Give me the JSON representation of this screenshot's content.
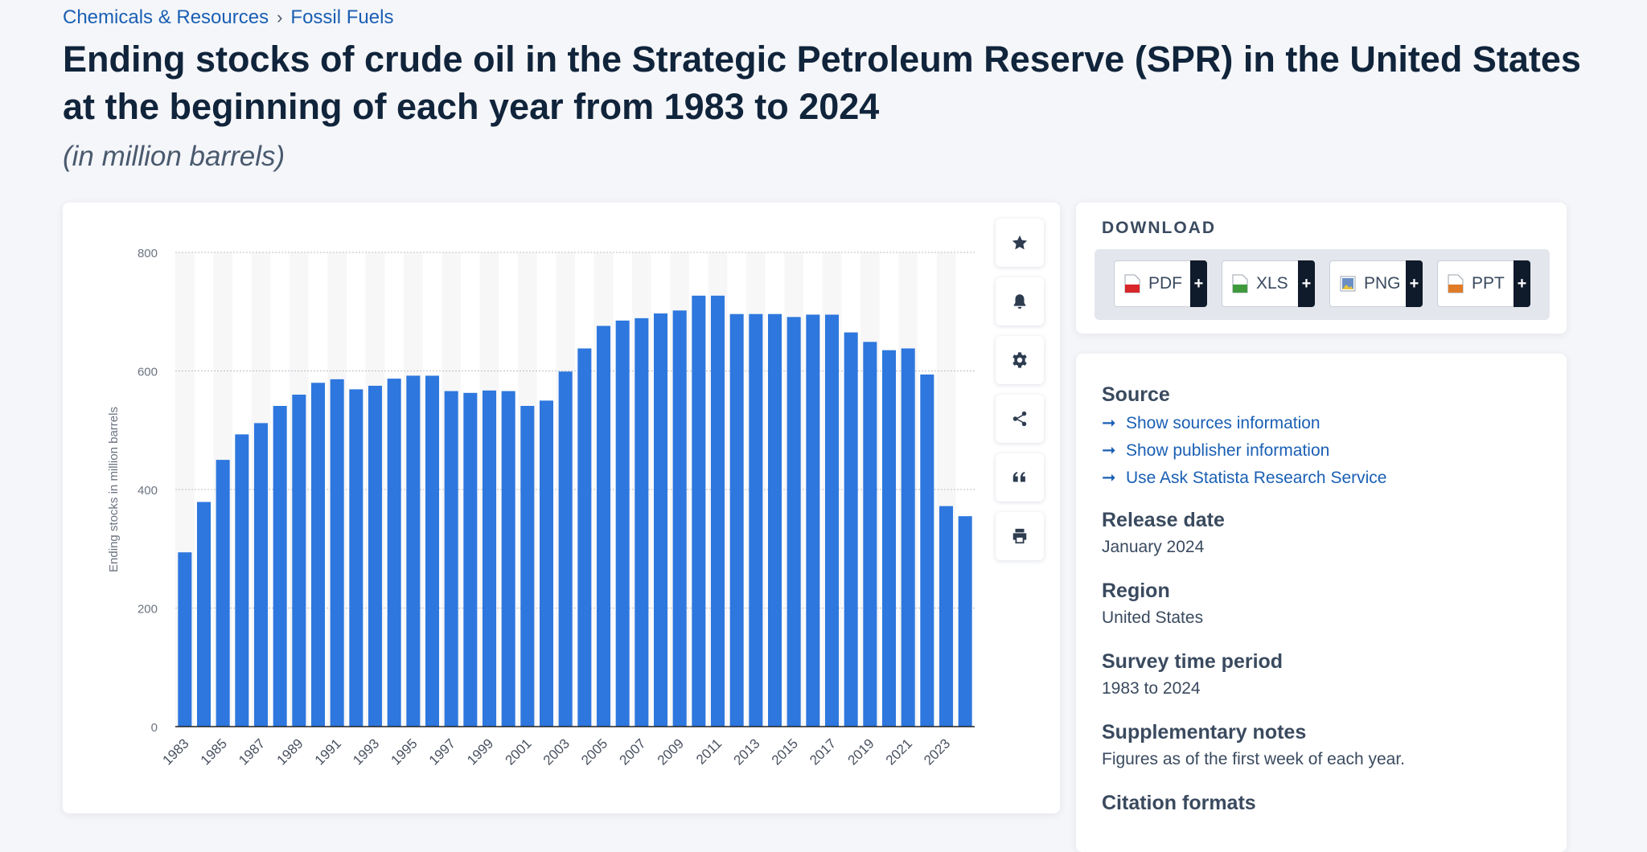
{
  "breadcrumb": {
    "item1": "Chemicals & Resources",
    "separator": "›",
    "item2": "Fossil Fuels"
  },
  "title": "Ending stocks of crude oil in the Strategic Petroleum Reserve (SPR) in the United States at the beginning of each year from 1983 to 2024",
  "subtitle": "(in million barrels)",
  "toolbar": [
    "star-icon",
    "bell-icon",
    "gear-icon",
    "share-icon",
    "quote-icon",
    "print-icon"
  ],
  "download": {
    "title": "DOWNLOAD",
    "buttons": [
      {
        "label": "PDF",
        "plus": "+",
        "color": "#d8262b"
      },
      {
        "label": "XLS",
        "plus": "+",
        "color": "#3e9a3c"
      },
      {
        "label": "PNG",
        "plus": "+",
        "color": "#6b8fc4"
      },
      {
        "label": "PPT",
        "plus": "+",
        "color": "#e07b28"
      }
    ]
  },
  "info": {
    "source_heading": "Source",
    "links": [
      "Show sources information",
      "Show publisher information",
      "Use Ask Statista Research Service"
    ],
    "release_heading": "Release date",
    "release_value": "January 2024",
    "region_heading": "Region",
    "region_value": "United States",
    "period_heading": "Survey time period",
    "period_value": "1983 to 2024",
    "notes_heading": "Supplementary notes",
    "notes_value": "Figures as of the first week of each year.",
    "citation_heading": "Citation formats"
  },
  "chart_data": {
    "type": "bar",
    "ylabel": "Ending stocks in million barrels",
    "ylim": [
      0,
      800
    ],
    "yticks": [
      0,
      200,
      400,
      600,
      800
    ],
    "grid": true,
    "bar_color": "#2e77de",
    "categories": [
      "1983",
      "1984",
      "1985",
      "1986",
      "1987",
      "1988",
      "1989",
      "1990",
      "1991",
      "1992",
      "1993",
      "1994",
      "1995",
      "1996",
      "1997",
      "1998",
      "1999",
      "2000",
      "2001",
      "2002",
      "2003",
      "2004",
      "2005",
      "2006",
      "2007",
      "2008",
      "2009",
      "2010",
      "2011",
      "2012",
      "2013",
      "2014",
      "2015",
      "2016",
      "2017",
      "2018",
      "2019",
      "2020",
      "2021",
      "2022",
      "2023",
      "2024"
    ],
    "tick_labels": [
      "1983",
      "1985",
      "1987",
      "1989",
      "1991",
      "1993",
      "1995",
      "1997",
      "1999",
      "2001",
      "2003",
      "2005",
      "2007",
      "2009",
      "2011",
      "2013",
      "2015",
      "2017",
      "2019",
      "2021",
      "2023"
    ],
    "values": [
      294,
      379,
      450,
      493,
      512,
      541,
      560,
      580,
      586,
      569,
      575,
      587,
      592,
      592,
      566,
      563,
      567,
      566,
      541,
      550,
      599,
      638,
      676,
      685,
      689,
      697,
      702,
      727,
      727,
      696,
      696,
      696,
      691,
      695,
      695,
      665,
      649,
      635,
      638,
      594,
      372,
      355
    ]
  }
}
